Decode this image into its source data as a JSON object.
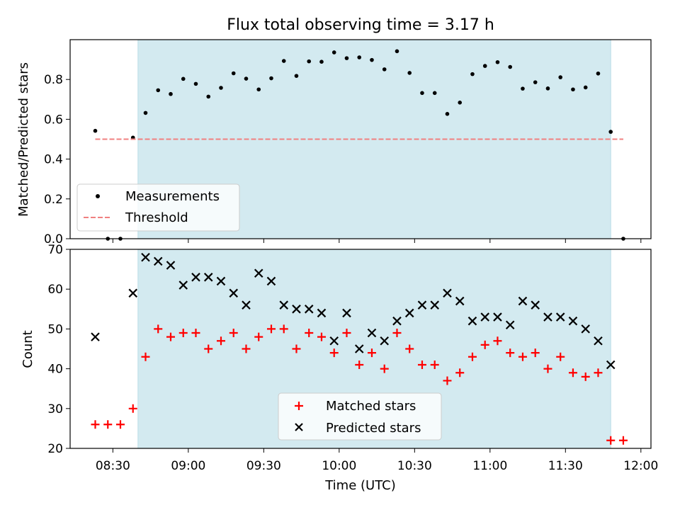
{
  "chart_data": {
    "title": "Flux total observing time = 3.17 h",
    "xlabel": "Time (UTC)",
    "xlim": [
      "08:13",
      "12:04"
    ],
    "xticks": [
      "08:30",
      "09:00",
      "09:30",
      "10:00",
      "10:30",
      "11:00",
      "11:30",
      "12:00"
    ],
    "shaded_interval": {
      "start": "08:40",
      "end": "11:48",
      "color": "#d3eaf0"
    },
    "colors": {
      "measurements": "#000000",
      "threshold": "#f08080",
      "matched": "#ff0000",
      "predicted": "#000000"
    },
    "panels": [
      {
        "type": "scatter",
        "ylabel": "Matched/Predicted stars",
        "ylim": [
          0,
          1.0
        ],
        "yticks": [
          "0.0",
          "0.2",
          "0.4",
          "0.6",
          "0.8"
        ],
        "legend_position": "lower-left",
        "series": [
          {
            "name": "Measurements",
            "marker": "dot",
            "points": [
              [
                "08:23",
                0.542
              ],
              [
                "08:28",
                0.0
              ],
              [
                "08:33",
                0.0
              ],
              [
                "08:38",
                0.508
              ],
              [
                "08:43",
                0.632
              ],
              [
                "08:48",
                0.746
              ],
              [
                "08:53",
                0.727
              ],
              [
                "08:58",
                0.803
              ],
              [
                "09:03",
                0.778
              ],
              [
                "09:08",
                0.714
              ],
              [
                "09:13",
                0.758
              ],
              [
                "09:18",
                0.831
              ],
              [
                "09:23",
                0.804
              ],
              [
                "09:28",
                0.75
              ],
              [
                "09:33",
                0.806
              ],
              [
                "09:38",
                0.893
              ],
              [
                "09:43",
                0.818
              ],
              [
                "09:48",
                0.891
              ],
              [
                "09:53",
                0.889
              ],
              [
                "09:58",
                0.936
              ],
              [
                "10:03",
                0.907
              ],
              [
                "10:08",
                0.911
              ],
              [
                "10:13",
                0.898
              ],
              [
                "10:18",
                0.851
              ],
              [
                "10:23",
                0.942
              ],
              [
                "10:28",
                0.833
              ],
              [
                "10:33",
                0.732
              ],
              [
                "10:38",
                0.732
              ],
              [
                "10:43",
                0.627
              ],
              [
                "10:48",
                0.684
              ],
              [
                "10:53",
                0.827
              ],
              [
                "10:58",
                0.868
              ],
              [
                "11:03",
                0.887
              ],
              [
                "11:08",
                0.863
              ],
              [
                "11:13",
                0.754
              ],
              [
                "11:18",
                0.786
              ],
              [
                "11:23",
                0.755
              ],
              [
                "11:28",
                0.811
              ],
              [
                "11:33",
                0.75
              ],
              [
                "11:38",
                0.76
              ],
              [
                "11:43",
                0.83
              ],
              [
                "11:48",
                0.537
              ],
              [
                "11:53",
                0.0
              ]
            ]
          },
          {
            "name": "Threshold",
            "marker": "dashed-line",
            "points": [
              [
                "08:23",
                0.5
              ],
              [
                "11:53",
                0.5
              ]
            ]
          }
        ]
      },
      {
        "type": "scatter",
        "ylabel": "Count",
        "ylim": [
          20,
          70
        ],
        "yticks": [
          "20",
          "30",
          "40",
          "50",
          "60",
          "70"
        ],
        "legend_position": "lower-center",
        "series": [
          {
            "name": "Matched stars",
            "marker": "plus",
            "points": [
              [
                "08:23",
                26
              ],
              [
                "08:28",
                26
              ],
              [
                "08:33",
                26
              ],
              [
                "08:38",
                30
              ],
              [
                "08:43",
                43
              ],
              [
                "08:48",
                50
              ],
              [
                "08:53",
                48
              ],
              [
                "08:58",
                49
              ],
              [
                "09:03",
                49
              ],
              [
                "09:08",
                45
              ],
              [
                "09:13",
                47
              ],
              [
                "09:18",
                49
              ],
              [
                "09:23",
                45
              ],
              [
                "09:28",
                48
              ],
              [
                "09:33",
                50
              ],
              [
                "09:38",
                50
              ],
              [
                "09:43",
                45
              ],
              [
                "09:48",
                49
              ],
              [
                "09:53",
                48
              ],
              [
                "09:58",
                44
              ],
              [
                "10:03",
                49
              ],
              [
                "10:08",
                41
              ],
              [
                "10:13",
                44
              ],
              [
                "10:18",
                40
              ],
              [
                "10:23",
                49
              ],
              [
                "10:28",
                45
              ],
              [
                "10:33",
                41
              ],
              [
                "10:38",
                41
              ],
              [
                "10:43",
                37
              ],
              [
                "10:48",
                39
              ],
              [
                "10:53",
                43
              ],
              [
                "10:58",
                46
              ],
              [
                "11:03",
                47
              ],
              [
                "11:08",
                44
              ],
              [
                "11:13",
                43
              ],
              [
                "11:18",
                44
              ],
              [
                "11:23",
                40
              ],
              [
                "11:28",
                43
              ],
              [
                "11:33",
                39
              ],
              [
                "11:38",
                38
              ],
              [
                "11:43",
                39
              ],
              [
                "11:48",
                22
              ],
              [
                "11:53",
                22
              ]
            ]
          },
          {
            "name": "Predicted stars",
            "marker": "x",
            "points": [
              [
                "08:23",
                48
              ],
              [
                "08:38",
                59
              ],
              [
                "08:43",
                68
              ],
              [
                "08:48",
                67
              ],
              [
                "08:53",
                66
              ],
              [
                "08:58",
                61
              ],
              [
                "09:03",
                63
              ],
              [
                "09:08",
                63
              ],
              [
                "09:13",
                62
              ],
              [
                "09:18",
                59
              ],
              [
                "09:23",
                56
              ],
              [
                "09:28",
                64
              ],
              [
                "09:33",
                62
              ],
              [
                "09:38",
                56
              ],
              [
                "09:43",
                55
              ],
              [
                "09:48",
                55
              ],
              [
                "09:53",
                54
              ],
              [
                "09:58",
                47
              ],
              [
                "10:03",
                54
              ],
              [
                "10:08",
                45
              ],
              [
                "10:13",
                49
              ],
              [
                "10:18",
                47
              ],
              [
                "10:23",
                52
              ],
              [
                "10:28",
                54
              ],
              [
                "10:33",
                56
              ],
              [
                "10:38",
                56
              ],
              [
                "10:43",
                59
              ],
              [
                "10:48",
                57
              ],
              [
                "10:53",
                52
              ],
              [
                "10:58",
                53
              ],
              [
                "11:03",
                53
              ],
              [
                "11:08",
                51
              ],
              [
                "11:13",
                57
              ],
              [
                "11:18",
                56
              ],
              [
                "11:23",
                53
              ],
              [
                "11:28",
                53
              ],
              [
                "11:33",
                52
              ],
              [
                "11:38",
                50
              ],
              [
                "11:43",
                47
              ],
              [
                "11:48",
                41
              ]
            ]
          }
        ]
      }
    ]
  }
}
